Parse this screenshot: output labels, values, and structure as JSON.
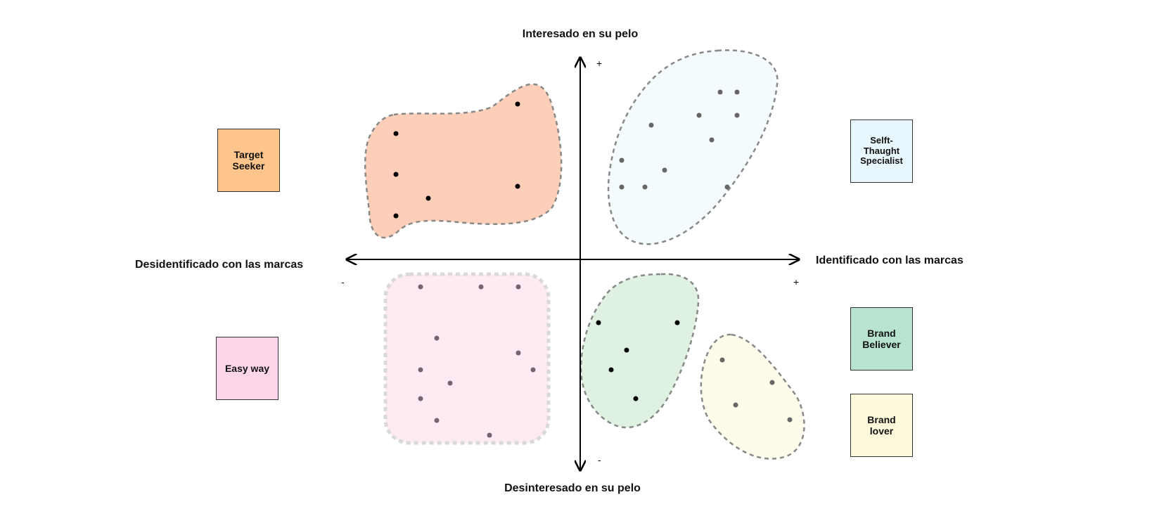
{
  "axes": {
    "top": "Interesado en su pelo",
    "bottom": "Desinteresado en su pelo",
    "left": "Desidentificado con las marcas",
    "right": "Identificado con las marcas",
    "plus_y": "+",
    "minus_y": "-",
    "plus_x": "+",
    "minus_x": "-"
  },
  "notes": {
    "target_seeker": {
      "label": "Target\nSeeker",
      "color": "#fdc58c"
    },
    "selft_thaught": {
      "label": "Selft-\nThaught\nSpecialist",
      "color": "#e8f6fd"
    },
    "easy_way": {
      "label": "Easy way",
      "color": "#fdd6ea"
    },
    "brand_believer": {
      "label": "Brand\nBeliever",
      "color": "#b8e3d0"
    },
    "brand_lover": {
      "label": "Brand\nlover",
      "color": "#fefadb"
    }
  },
  "clusters": {
    "target_seeker": {
      "fill": "#fdcfb8"
    },
    "selft_thaught": {
      "fill": "#f3fbfd"
    },
    "easy_way": {
      "fill": "#fdeaf3"
    },
    "brand_believer": {
      "fill": "#dff1e0"
    },
    "brand_lover": {
      "fill": "#fdfbe9"
    }
  }
}
